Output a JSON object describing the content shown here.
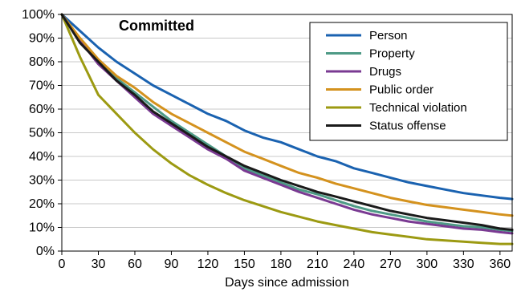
{
  "chart_data": {
    "type": "line",
    "title": "Committed",
    "xlabel": "Days since admission",
    "ylabel": "",
    "xlim": [
      0,
      370
    ],
    "ylim": [
      0,
      100
    ],
    "x_ticks": [
      0,
      30,
      60,
      90,
      120,
      150,
      180,
      210,
      240,
      270,
      300,
      330,
      360
    ],
    "x_tick_labels": [
      "0",
      "30",
      "60",
      "90",
      "120",
      "150",
      "180",
      "210",
      "240",
      "270",
      "300",
      "330",
      "360"
    ],
    "y_ticks": [
      0,
      10,
      20,
      30,
      40,
      50,
      60,
      70,
      80,
      90,
      100
    ],
    "y_tick_labels": [
      "0%",
      "10%",
      "20%",
      "30%",
      "40%",
      "50%",
      "60%",
      "70%",
      "80%",
      "90%",
      "100%"
    ],
    "grid": "horizontal",
    "legend_position": "top-right",
    "x": [
      0,
      15,
      30,
      45,
      60,
      75,
      90,
      105,
      120,
      135,
      150,
      165,
      180,
      195,
      210,
      225,
      240,
      255,
      270,
      285,
      300,
      315,
      330,
      345,
      360,
      370
    ],
    "series": [
      {
        "name": "Person",
        "color": "#1a62b0",
        "values": [
          100,
          93,
          86,
          80,
          75,
          70,
          66,
          62,
          58,
          55,
          51,
          48,
          46,
          43,
          40,
          38,
          35,
          33,
          31,
          29,
          27.5,
          26,
          24.5,
          23.5,
          22.5,
          22
        ]
      },
      {
        "name": "Property",
        "color": "#4e9a86",
        "values": [
          100,
          89,
          80,
          73,
          67,
          61,
          55,
          50,
          45,
          40,
          35,
          32,
          29,
          26,
          24,
          21.5,
          19,
          17,
          15.5,
          14,
          12.5,
          11.5,
          10.5,
          10,
          9,
          8.5
        ]
      },
      {
        "name": "Drugs",
        "color": "#7a3a92",
        "values": [
          100,
          89,
          79,
          72,
          65,
          58,
          53,
          48,
          43,
          39,
          34,
          31,
          28,
          25,
          22.5,
          20,
          17.5,
          15.5,
          14,
          12.5,
          11.5,
          10.5,
          9.5,
          9,
          8,
          7.5
        ]
      },
      {
        "name": "Public order",
        "color": "#d4921e",
        "values": [
          100,
          90,
          81,
          74,
          69,
          63,
          58,
          54,
          50,
          46,
          42,
          39,
          36,
          33,
          31,
          28.5,
          26.5,
          24.5,
          22.5,
          21,
          19.5,
          18.5,
          17.5,
          16.5,
          15.5,
          15
        ]
      },
      {
        "name": "Technical violation",
        "color": "#9c9a12",
        "values": [
          100,
          82,
          66,
          58,
          50,
          43,
          37,
          32,
          28,
          24.5,
          21.5,
          19,
          16.5,
          14.5,
          12.5,
          11,
          9.5,
          8,
          7,
          6,
          5,
          4.5,
          4,
          3.5,
          3,
          3
        ]
      },
      {
        "name": "Status offense",
        "color": "#1a1a1a",
        "values": [
          100,
          88,
          80,
          72,
          66,
          59,
          54,
          49,
          44,
          40,
          36,
          33,
          30,
          27.5,
          25,
          23,
          21,
          19,
          17,
          15.5,
          14,
          13,
          12,
          11,
          9.5,
          9
        ]
      }
    ]
  }
}
